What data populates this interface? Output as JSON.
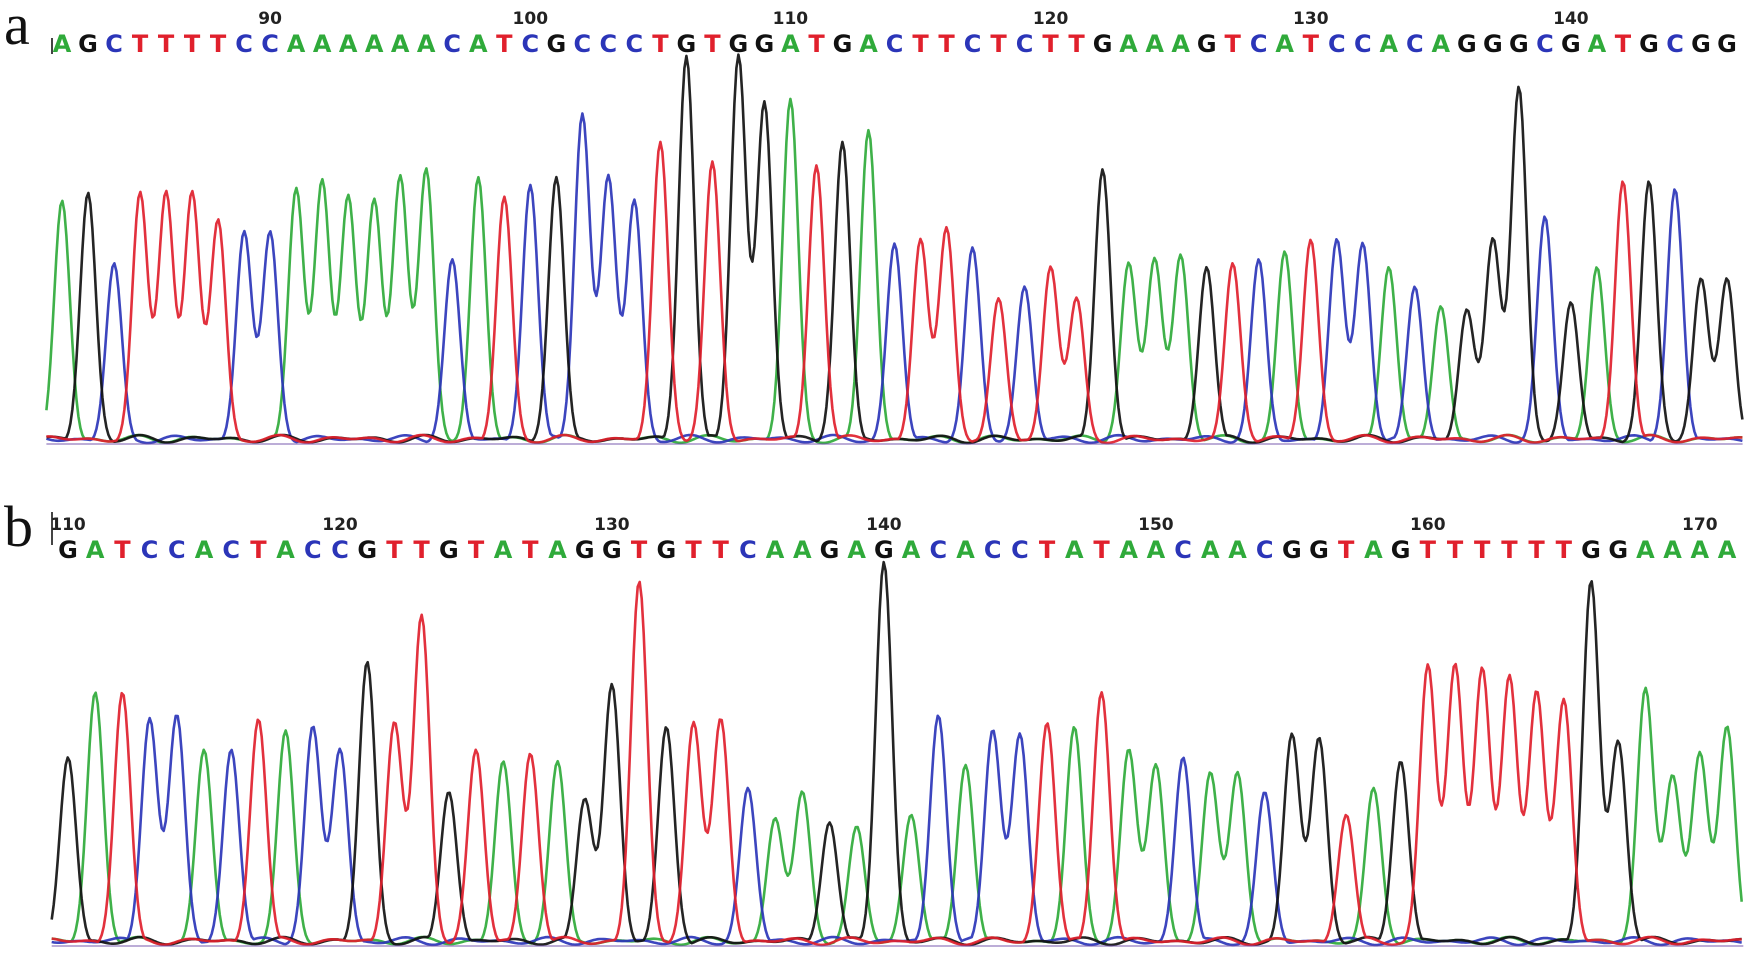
{
  "colors": {
    "A": "#2faa3a",
    "C": "#2b35b8",
    "G": "#111111",
    "T": "#e0202c"
  },
  "panels": [
    {
      "letter": "a",
      "sequence": "AGCTTTTCCAAAAAACATCGCCCTGTGGATGACTTCTCTTGAAAGTCATCCACAGGGCGATGCGG",
      "positions": [
        {
          "label": "90",
          "index": 8
        },
        {
          "label": "100",
          "index": 18
        },
        {
          "label": "110",
          "index": 28
        },
        {
          "label": "120",
          "index": 38
        },
        {
          "label": "130",
          "index": 48
        },
        {
          "label": "140",
          "index": 58
        }
      ]
    },
    {
      "letter": "b",
      "sequence": "GATCCACTACCGTTGTATAGGTGTTCAAGAGACACCTATAACAACGGTAGTTTTTTGGAAAA",
      "positions": [
        {
          "label": "110",
          "index": 0
        },
        {
          "label": "120",
          "index": 10
        },
        {
          "label": "130",
          "index": 20
        },
        {
          "label": "140",
          "index": 30
        },
        {
          "label": "150",
          "index": 40
        },
        {
          "label": "160",
          "index": 50
        },
        {
          "label": "170",
          "index": 60
        }
      ]
    }
  ],
  "chart_data": [
    {
      "type": "line",
      "title": "",
      "panel": "a",
      "sequence": "AGCTTTTCCAAAAAACATCGCCCTGTGGATGACTTCTCTTGAAAGTCATCCACAGGGCGATGCGG",
      "position_ticks": [
        "90",
        "100",
        "110",
        "120",
        "130",
        "140"
      ],
      "series": [
        {
          "name": "A",
          "color": "#2faa3a"
        },
        {
          "name": "C",
          "color": "#2b35b8"
        },
        {
          "name": "G",
          "color": "#111111"
        },
        {
          "name": "T",
          "color": "#e0202c"
        }
      ],
      "peak_heights": [
        0.62,
        0.64,
        0.46,
        0.64,
        0.64,
        0.64,
        0.57,
        0.54,
        0.54,
        0.65,
        0.67,
        0.63,
        0.62,
        0.68,
        0.7,
        0.47,
        0.68,
        0.63,
        0.66,
        0.68,
        0.84,
        0.68,
        0.62,
        0.77,
        0.99,
        0.72,
        0.99,
        0.87,
        0.88,
        0.71,
        0.77,
        0.8,
        0.51,
        0.52,
        0.55,
        0.5,
        0.37,
        0.4,
        0.45,
        0.37,
        0.7,
        0.46,
        0.47,
        0.48,
        0.45,
        0.46,
        0.47,
        0.49,
        0.52,
        0.52,
        0.51,
        0.45,
        0.4,
        0.35,
        0.34,
        0.52,
        0.91,
        0.58,
        0.36,
        0.45,
        0.67,
        0.67,
        0.65,
        0.42,
        0.42
      ]
    },
    {
      "type": "line",
      "title": "",
      "panel": "b",
      "sequence": "GATCCACTACCGTTGTATAGGTGTTCAAGAGACACCTATAACAACGGTAGTTTTTTGGAAAA",
      "position_ticks": [
        "110",
        "120",
        "130",
        "140",
        "150",
        "160",
        "170"
      ],
      "series": [
        {
          "name": "A",
          "color": "#2faa3a"
        },
        {
          "name": "C",
          "color": "#2b35b8"
        },
        {
          "name": "G",
          "color": "#111111"
        },
        {
          "name": "T",
          "color": "#e0202c"
        }
      ],
      "peak_heights": [
        0.49,
        0.66,
        0.66,
        0.59,
        0.6,
        0.51,
        0.51,
        0.59,
        0.56,
        0.57,
        0.51,
        0.74,
        0.58,
        0.86,
        0.4,
        0.51,
        0.48,
        0.5,
        0.48,
        0.38,
        0.68,
        0.95,
        0.57,
        0.58,
        0.59,
        0.41,
        0.33,
        0.4,
        0.32,
        0.31,
        1.0,
        0.34,
        0.6,
        0.47,
        0.56,
        0.55,
        0.58,
        0.57,
        0.66,
        0.51,
        0.47,
        0.49,
        0.45,
        0.45,
        0.4,
        0.55,
        0.54,
        0.34,
        0.41,
        0.48,
        0.73,
        0.73,
        0.72,
        0.7,
        0.66,
        0.64,
        0.95,
        0.53,
        0.67,
        0.44,
        0.5,
        0.57
      ]
    }
  ]
}
